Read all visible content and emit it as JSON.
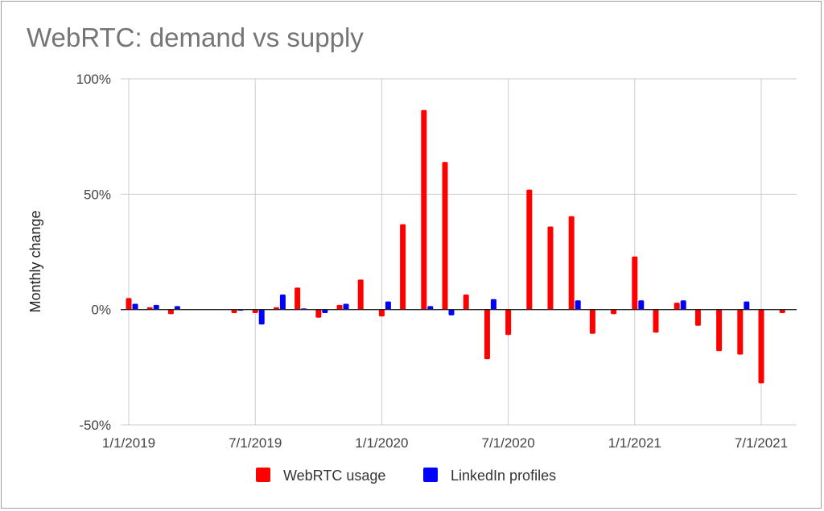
{
  "chart_data": {
    "type": "bar",
    "title": "WebRTC: demand vs supply",
    "xlabel": "",
    "ylabel": "Monthly change",
    "ylim": [
      -50,
      100
    ],
    "y_ticks": [
      "100%",
      "50%",
      "0%",
      "-50%"
    ],
    "y_tick_values": [
      100,
      50,
      0,
      -50
    ],
    "x_ticks": [
      "1/1/2019",
      "7/1/2019",
      "1/1/2020",
      "7/1/2020",
      "1/1/2021",
      "7/1/2021"
    ],
    "categories": [
      "2019-01",
      "2019-02",
      "2019-03",
      "2019-04",
      "2019-05",
      "2019-06",
      "2019-07",
      "2019-08",
      "2019-09",
      "2019-10",
      "2019-11",
      "2019-12",
      "2020-01",
      "2020-02",
      "2020-03",
      "2020-04",
      "2020-05",
      "2020-06",
      "2020-07",
      "2020-08",
      "2020-09",
      "2020-10",
      "2020-11",
      "2020-12",
      "2021-01",
      "2021-02",
      "2021-03",
      "2021-04",
      "2021-05",
      "2021-06",
      "2021-07",
      "2021-08"
    ],
    "grid": true,
    "legend_position": "bottom",
    "series": [
      {
        "name": "WebRTC usage",
        "color": "#ff0000",
        "values": [
          5,
          1,
          -2,
          null,
          null,
          -1.5,
          -1.5,
          1,
          9.5,
          -3.5,
          2,
          13,
          -3,
          37,
          86.5,
          64,
          6.5,
          -21.5,
          -11,
          52,
          36,
          40.5,
          -10.5,
          -2,
          23,
          -10,
          3,
          -7,
          -18,
          -19.5,
          -32,
          -1.5
        ]
      },
      {
        "name": "LinkedIn profiles",
        "color": "#0000ff",
        "values": [
          2.5,
          2,
          1.5,
          null,
          null,
          -0.5,
          -6.5,
          6.5,
          0.5,
          -1.5,
          2.5,
          null,
          3.5,
          null,
          1.5,
          -2.5,
          null,
          4.5,
          null,
          null,
          null,
          4,
          null,
          null,
          4,
          null,
          4,
          null,
          null,
          3.5,
          null,
          null
        ]
      }
    ]
  }
}
